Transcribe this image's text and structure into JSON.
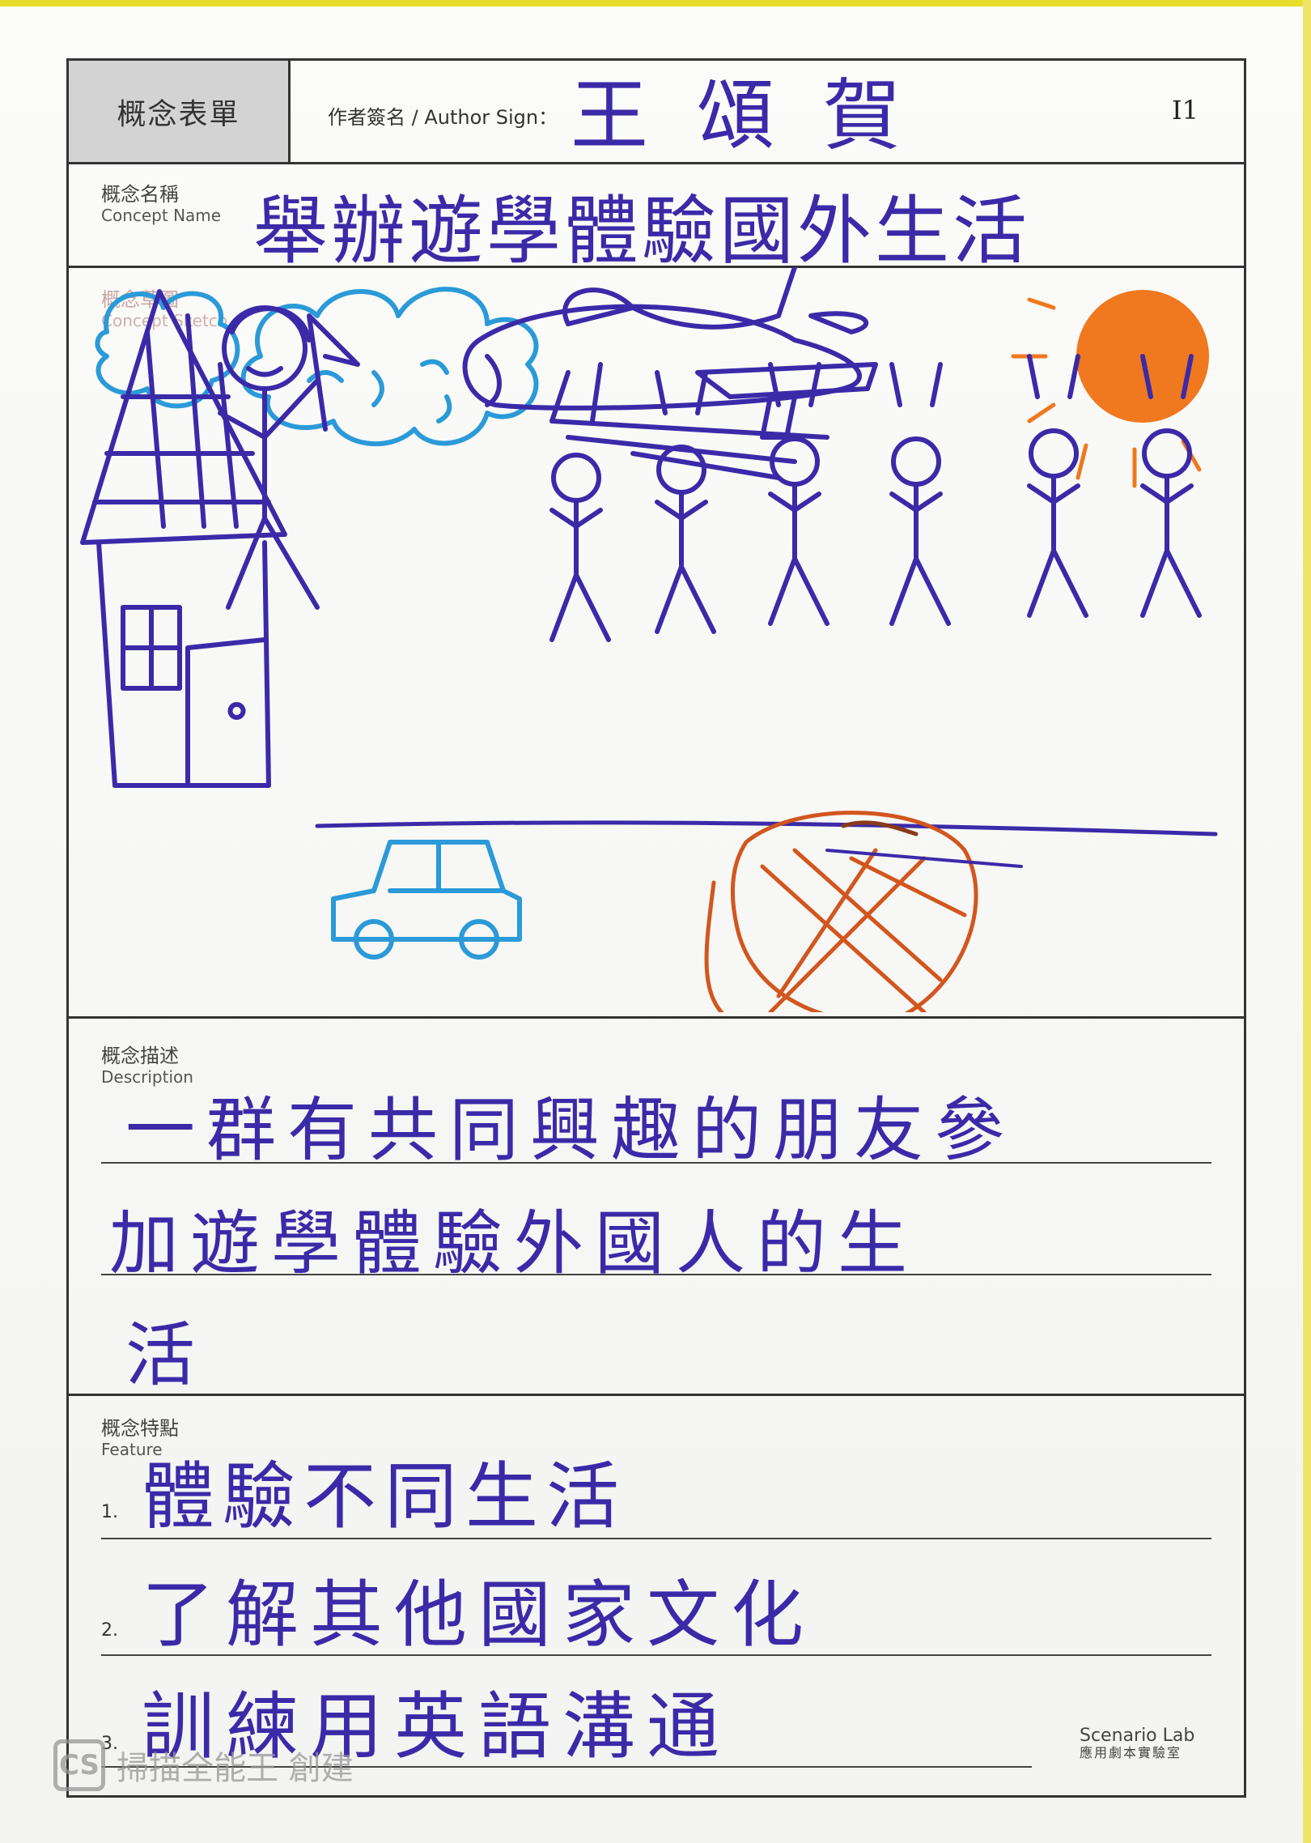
{
  "form": {
    "title": "概念表單",
    "author_label": "作者簽名 / Author Sign：",
    "author_sign": "王頌賀",
    "id": "I1"
  },
  "concept_name": {
    "label_zh": "概念名稱",
    "label_en": "Concept Name",
    "value": "舉辦遊學體驗國外生活"
  },
  "sketch": {
    "label_zh": "概念草圖",
    "label_en": "Concept Sketch"
  },
  "description": {
    "label_zh": "概念描述",
    "label_en": "Description",
    "lines": [
      "一群有共同興趣的朋友參",
      "加遊學體驗外國人的生",
      "活"
    ]
  },
  "features": {
    "label_zh": "概念特點",
    "label_en": "Feature",
    "items": [
      {
        "num": "1.",
        "text": "體驗不同生活"
      },
      {
        "num": "2.",
        "text": "了解其他國家文化"
      },
      {
        "num": "3.",
        "text": "訓練用英語溝通"
      }
    ]
  },
  "footer": {
    "lab_en": "Scenario Lab",
    "lab_zh": "應用劇本實驗室",
    "watermark_badge": "CS",
    "watermark_text": "掃描全能王 創建"
  },
  "colors": {
    "ink": "#3b2aa8",
    "cloud": "#2b9ad8",
    "sun": "#f0781e",
    "sketch_red": "#d2561e",
    "label_grey": "#d3d3d3"
  }
}
